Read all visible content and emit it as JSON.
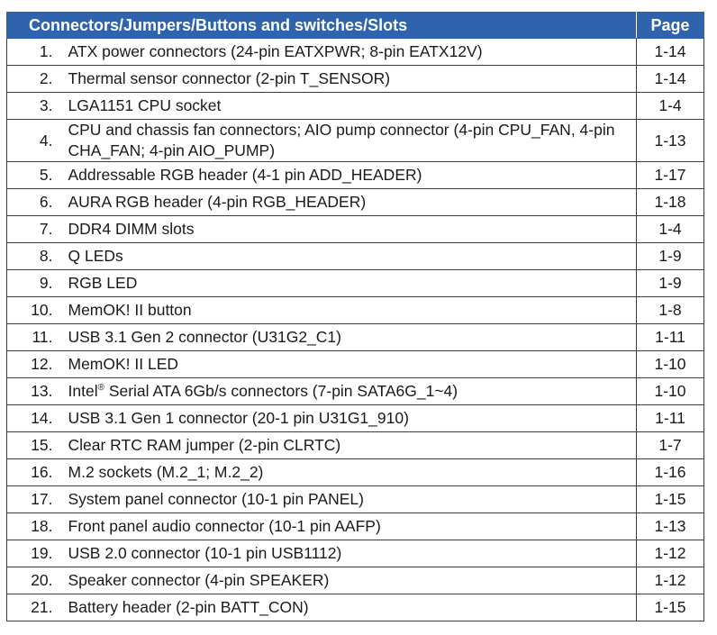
{
  "header": {
    "title": "Connectors/Jumpers/Buttons and switches/Slots",
    "page": "Page"
  },
  "rows": [
    {
      "num": "1.",
      "desc": "ATX power connectors (24-pin EATXPWR; 8-pin EATX12V)",
      "page": "1-14"
    },
    {
      "num": "2.",
      "desc": "Thermal sensor connector (2-pin T_SENSOR)",
      "page": "1-14"
    },
    {
      "num": "3.",
      "desc": "LGA1151 CPU socket",
      "page": "1-4"
    },
    {
      "num": "4.",
      "desc": "CPU and chassis fan connectors; AIO pump connector (4-pin CPU_FAN, 4-pin CHA_FAN; 4-pin AIO_PUMP)",
      "page": "1-13"
    },
    {
      "num": "5.",
      "desc": "Addressable RGB header (4-1 pin ADD_HEADER)",
      "page": "1-17"
    },
    {
      "num": "6.",
      "desc": "AURA RGB header (4-pin RGB_HEADER)",
      "page": "1-18"
    },
    {
      "num": "7.",
      "desc": "DDR4 DIMM slots",
      "page": "1-4"
    },
    {
      "num": "8.",
      "desc": "Q LEDs",
      "page": "1-9"
    },
    {
      "num": "9.",
      "desc": "RGB LED",
      "page": "1-9"
    },
    {
      "num": "10.",
      "desc": "MemOK! II button",
      "page": "1-8"
    },
    {
      "num": "11.",
      "desc": "USB 3.1 Gen 2 connector (U31G2_C1)",
      "page": "1-11"
    },
    {
      "num": "12.",
      "desc": "MemOK! II LED",
      "page": "1-10"
    },
    {
      "num": "13.",
      "desc_pre": "Intel",
      "desc_sup": "®",
      "desc_post": " Serial ATA 6Gb/s connectors (7-pin SATA6G_1~4)",
      "page": "1-10"
    },
    {
      "num": "14.",
      "desc": "USB 3.1 Gen 1 connector (20-1 pin U31G1_910)",
      "page": "1-11"
    },
    {
      "num": "15.",
      "desc": "Clear RTC RAM jumper (2-pin CLRTC)",
      "page": "1-7"
    },
    {
      "num": "16.",
      "desc": "M.2 sockets (M.2_1; M.2_2)",
      "page": "1-16"
    },
    {
      "num": "17.",
      "desc": "System panel connector (10-1 pin PANEL)",
      "page": "1-15"
    },
    {
      "num": "18.",
      "desc": "Front panel audio connector (10-1 pin AAFP)",
      "page": "1-13"
    },
    {
      "num": "19.",
      "desc": "USB 2.0 connector (10-1 pin USB1112)",
      "page": "1-12"
    },
    {
      "num": "20.",
      "desc": "Speaker connector (4-pin SPEAKER)",
      "page": "1-12"
    },
    {
      "num": "21.",
      "desc": "Battery header (2-pin BATT_CON)",
      "page": "1-15"
    }
  ]
}
